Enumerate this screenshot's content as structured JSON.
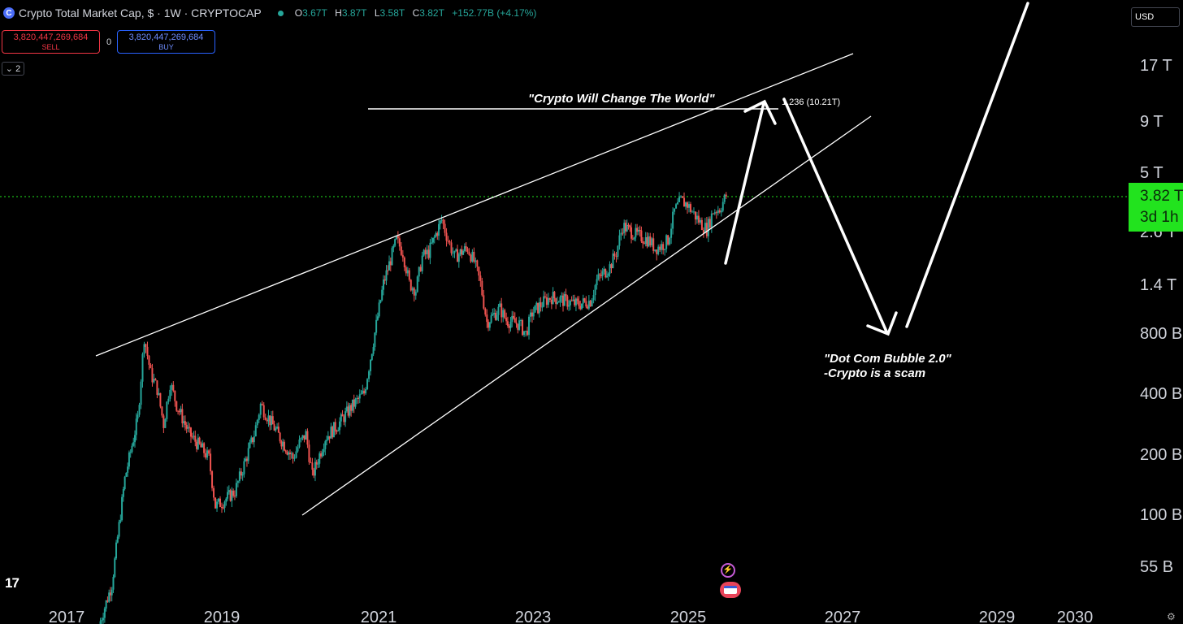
{
  "header": {
    "symbol_icon": "C",
    "title": "Crypto Total Market Cap, $ · 1W · CRYPTOCAP",
    "ohlc": {
      "o_label": "O",
      "o": "3.67T",
      "h_label": "H",
      "h": "3.87T",
      "l_label": "L",
      "l": "3.58T",
      "c_label": "C",
      "c": "3.82T",
      "change": "+152.77B (+4.17%)"
    }
  },
  "trade": {
    "sell_price": "3,820,447,269,684",
    "sell_label": "SELL",
    "spread": "0",
    "buy_price": "3,820,447,269,684",
    "buy_label": "BUY"
  },
  "collapse_label": "⌄ 2",
  "currency": "USD",
  "price_badge": {
    "price": "3.82 T",
    "countdown": "3d 1h"
  },
  "icons": {
    "tv_logo": "tradingview-logo-icon",
    "news": "lightning-news-icon",
    "flag": "us-flag-icon",
    "settings": "gear-icon"
  },
  "colors": {
    "up": "#26a69a",
    "down": "#ef5350",
    "badge": "#22e31e",
    "sell": "#f23645",
    "buy": "#2962ff",
    "lines": "#ffffff"
  },
  "chart_data": {
    "type": "candlestick",
    "scale": "log",
    "grid": false,
    "x_ticks": [
      "2017",
      "2019",
      "2021",
      "2023",
      "2025",
      "2027",
      "2029",
      "2030"
    ],
    "y_ticks": [
      "17 T",
      "9 T",
      "5 T",
      "2.6 T",
      "1.4 T",
      "800 B",
      "400 B",
      "200 B",
      "100 B",
      "55 B"
    ],
    "last_price": "3.82T",
    "series": [
      {
        "values": [
          [
            "2017-06",
            28
          ],
          [
            "2017-08",
            45
          ],
          [
            "2017-10",
            150
          ],
          [
            "2017-12",
            300
          ],
          [
            "2018-01",
            760
          ],
          [
            "2018-02",
            500
          ],
          [
            "2018-03",
            420
          ],
          [
            "2018-04",
            280
          ],
          [
            "2018-05",
            450
          ],
          [
            "2018-06",
            350
          ],
          [
            "2018-08",
            250
          ],
          [
            "2018-10",
            210
          ],
          [
            "2018-11",
            190
          ],
          [
            "2018-12",
            110
          ],
          [
            "2019-01",
            115
          ],
          [
            "2019-03",
            130
          ],
          [
            "2019-04",
            160
          ],
          [
            "2019-06",
            250
          ],
          [
            "2019-07",
            350
          ],
          [
            "2019-08",
            310
          ],
          [
            "2019-10",
            240
          ],
          [
            "2019-12",
            190
          ],
          [
            "2020-01",
            225
          ],
          [
            "2020-02",
            250
          ],
          [
            "2020-03",
            155
          ],
          [
            "2020-05",
            240
          ],
          [
            "2020-07",
            280
          ],
          [
            "2020-09",
            340
          ],
          [
            "2020-11",
            400
          ],
          [
            "2020-12",
            600
          ],
          [
            "2021-02",
            1400
          ],
          [
            "2021-04",
            2300
          ],
          [
            "2021-05",
            2000
          ],
          [
            "2021-06",
            1400
          ],
          [
            "2021-07",
            1300
          ],
          [
            "2021-08",
            1900
          ],
          [
            "2021-09",
            2000
          ],
          [
            "2021-11",
            2900
          ],
          [
            "2021-12",
            2300
          ],
          [
            "2022-01",
            1900
          ],
          [
            "2022-03",
            2100
          ],
          [
            "2022-04",
            1800
          ],
          [
            "2022-05",
            1400
          ],
          [
            "2022-06",
            900
          ],
          [
            "2022-08",
            1050
          ],
          [
            "2022-09",
            920
          ],
          [
            "2022-11",
            880
          ],
          [
            "2022-12",
            790
          ],
          [
            "2023-01",
            1000
          ],
          [
            "2023-03",
            1150
          ],
          [
            "2023-04",
            1200
          ],
          [
            "2023-06",
            1150
          ],
          [
            "2023-08",
            1100
          ],
          [
            "2023-10",
            1150
          ],
          [
            "2023-11",
            1450
          ],
          [
            "2024-01",
            1700
          ],
          [
            "2024-02",
            2000
          ],
          [
            "2024-03",
            2700
          ],
          [
            "2024-05",
            2450
          ],
          [
            "2024-07",
            2300
          ],
          [
            "2024-08",
            2100
          ],
          [
            "2024-09",
            2150
          ],
          [
            "2024-10",
            2300
          ],
          [
            "2024-11",
            3200
          ],
          [
            "2024-12",
            3600
          ],
          [
            "2025-01",
            3450
          ],
          [
            "2025-02",
            3100
          ],
          [
            "2025-03",
            2800
          ],
          [
            "2025-04",
            2600
          ],
          [
            "2025-05",
            3200
          ],
          [
            "2025-06",
            3300
          ],
          [
            "2025-07",
            3820
          ]
        ]
      }
    ],
    "annotations": [
      {
        "text": "\"Crypto Will Change The World\""
      },
      {
        "text": "1.236 (10.21T)"
      },
      {
        "text": "\"Dot Com Bubble 2.0\""
      },
      {
        "text": "-Crypto is a scam"
      }
    ]
  }
}
